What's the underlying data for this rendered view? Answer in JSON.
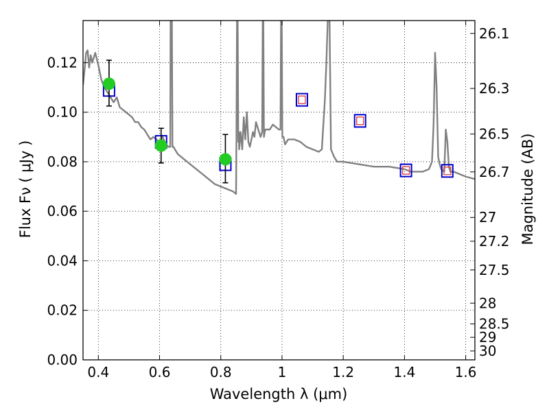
{
  "chart_data": {
    "type": "scatter",
    "xlabel": "Wavelength  λ (μm)",
    "ylabel": "Flux  Fν  ( μJy )",
    "ylabel_right": "Magnitude (AB)",
    "xlim": [
      0.35,
      1.63
    ],
    "ylim": [
      0.0,
      0.137
    ],
    "grid": true,
    "x_ticks": [
      0.4,
      0.6,
      0.8,
      1.0,
      1.2,
      1.4,
      1.6
    ],
    "x_tick_labels": [
      "0.4",
      "0.6",
      "0.8",
      "1",
      "1.2",
      "1.4",
      "1.6"
    ],
    "y_ticks": [
      0.0,
      0.02,
      0.04,
      0.06,
      0.08,
      0.1,
      0.12
    ],
    "y_tick_labels": [
      "0.00",
      "0.02",
      "0.04",
      "0.06",
      "0.08",
      "0.10",
      "0.12"
    ],
    "right_ticks": [
      {
        "flux": 0.1318,
        "label": "26.1"
      },
      {
        "flux": 0.1096,
        "label": "26.3"
      },
      {
        "flux": 0.0912,
        "label": "26.5"
      },
      {
        "flux": 0.0759,
        "label": "26.7"
      },
      {
        "flux": 0.0575,
        "label": "27"
      },
      {
        "flux": 0.0479,
        "label": "27.2"
      },
      {
        "flux": 0.0363,
        "label": "27.5"
      },
      {
        "flux": 0.0229,
        "label": "28"
      },
      {
        "flux": 0.0145,
        "label": "28.5"
      },
      {
        "flux": 0.0091,
        "label": "29"
      },
      {
        "flux": 0.0036,
        "label": "30"
      }
    ],
    "series": [
      {
        "kind": "line",
        "color": "#808080",
        "x": [
          0.35,
          0.355,
          0.36,
          0.365,
          0.37,
          0.375,
          0.38,
          0.39,
          0.4,
          0.41,
          0.42,
          0.43,
          0.44,
          0.45,
          0.46,
          0.47,
          0.48,
          0.49,
          0.5,
          0.51,
          0.52,
          0.53,
          0.54,
          0.55,
          0.56,
          0.57,
          0.58,
          0.59,
          0.6,
          0.61,
          0.62,
          0.63,
          0.635,
          0.636,
          0.638,
          0.64,
          0.642,
          0.644,
          0.646,
          0.65,
          0.66,
          0.68,
          0.7,
          0.72,
          0.74,
          0.76,
          0.78,
          0.8,
          0.82,
          0.84,
          0.85,
          0.851,
          0.853,
          0.855,
          0.857,
          0.859,
          0.86,
          0.865,
          0.87,
          0.875,
          0.88,
          0.885,
          0.89,
          0.895,
          0.9,
          0.905,
          0.91,
          0.915,
          0.92,
          0.93,
          0.935,
          0.937,
          0.939,
          0.941,
          0.945,
          0.95,
          0.96,
          0.97,
          0.98,
          0.99,
          0.995,
          0.997,
          0.999,
          1.001,
          1.003,
          1.005,
          1.01,
          1.02,
          1.04,
          1.06,
          1.08,
          1.1,
          1.12,
          1.13,
          1.135,
          1.14,
          1.145,
          1.15,
          1.155,
          1.16,
          1.17,
          1.18,
          1.2,
          1.25,
          1.3,
          1.35,
          1.4,
          1.42,
          1.44,
          1.46,
          1.48,
          1.49,
          1.495,
          1.5,
          1.505,
          1.51,
          1.515,
          1.52,
          1.53,
          1.535,
          1.54,
          1.545,
          1.55,
          1.56,
          1.58,
          1.6,
          1.63
        ],
        "y": [
          0.111,
          0.117,
          0.124,
          0.125,
          0.118,
          0.123,
          0.12,
          0.124,
          0.119,
          0.113,
          0.11,
          0.108,
          0.106,
          0.104,
          0.106,
          0.102,
          0.101,
          0.1,
          0.099,
          0.098,
          0.096,
          0.096,
          0.094,
          0.093,
          0.091,
          0.089,
          0.09,
          0.089,
          0.088,
          0.09,
          0.087,
          0.086,
          0.086,
          0.14,
          0.14,
          0.14,
          0.086,
          0.086,
          0.086,
          0.085,
          0.083,
          0.081,
          0.079,
          0.077,
          0.075,
          0.073,
          0.071,
          0.07,
          0.069,
          0.068,
          0.067,
          0.088,
          0.14,
          0.14,
          0.088,
          0.092,
          0.085,
          0.092,
          0.085,
          0.098,
          0.089,
          0.1,
          0.088,
          0.086,
          0.089,
          0.092,
          0.09,
          0.096,
          0.094,
          0.09,
          0.092,
          0.14,
          0.14,
          0.09,
          0.093,
          0.093,
          0.093,
          0.095,
          0.094,
          0.093,
          0.093,
          0.14,
          0.14,
          0.09,
          0.09,
          0.09,
          0.087,
          0.089,
          0.089,
          0.088,
          0.086,
          0.085,
          0.084,
          0.085,
          0.095,
          0.105,
          0.12,
          0.14,
          0.14,
          0.085,
          0.082,
          0.08,
          0.08,
          0.079,
          0.078,
          0.078,
          0.077,
          0.076,
          0.076,
          0.076,
          0.077,
          0.08,
          0.095,
          0.124,
          0.11,
          0.082,
          0.079,
          0.077,
          0.076,
          0.093,
          0.088,
          0.078,
          0.076,
          0.076,
          0.075,
          0.074,
          0.073
        ]
      },
      {
        "kind": "model_bandflux_squares",
        "color": "#0000cc",
        "x": [
          0.435,
          0.605,
          0.815
        ],
        "y": [
          0.109,
          0.088,
          0.079
        ]
      },
      {
        "kind": "observed_points",
        "color": "#22cc22",
        "x": [
          0.435,
          0.605,
          0.815
        ],
        "y": [
          0.1115,
          0.0865,
          0.081
        ],
        "yerr_low": [
          0.1025,
          0.0795,
          0.0715
        ],
        "yerr_high": [
          0.121,
          0.0935,
          0.091
        ]
      },
      {
        "kind": "predicted_squares",
        "color": "#0000cc",
        "inner_color": "#dd4444",
        "x": [
          1.065,
          1.255,
          1.405,
          1.54
        ],
        "y": [
          0.105,
          0.0965,
          0.0765,
          0.0763
        ]
      }
    ]
  }
}
